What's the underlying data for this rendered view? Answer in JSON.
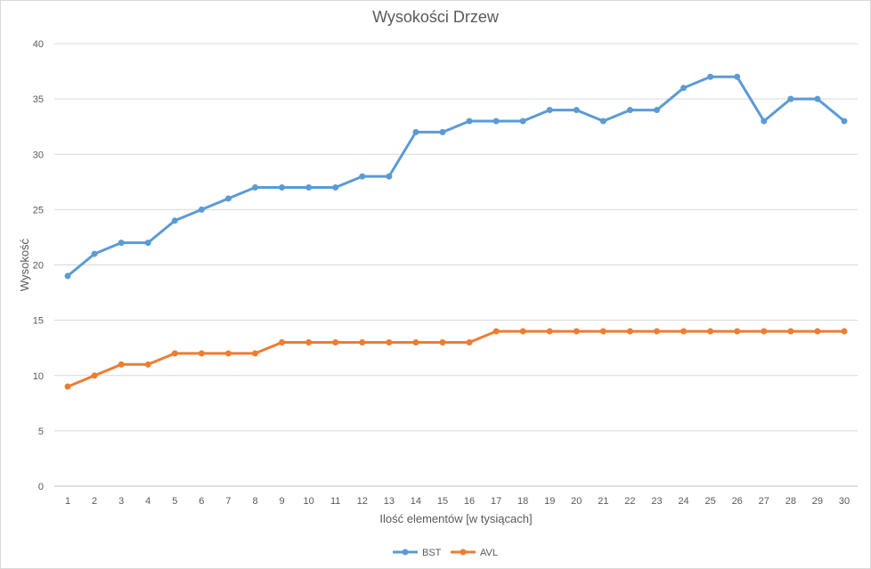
{
  "chart_data": {
    "type": "line",
    "title": "Wysokości Drzew",
    "xlabel": "Ilość elementów [w tysiącach]",
    "ylabel": "Wysokość",
    "ylim": [
      0,
      40
    ],
    "yticks": [
      0,
      5,
      10,
      15,
      20,
      25,
      30,
      35,
      40
    ],
    "grid": true,
    "legend_position": "bottom",
    "categories": [
      1,
      2,
      3,
      4,
      5,
      6,
      7,
      8,
      9,
      10,
      11,
      12,
      13,
      14,
      15,
      16,
      17,
      18,
      19,
      20,
      21,
      22,
      23,
      24,
      25,
      26,
      27,
      28,
      29,
      30
    ],
    "series": [
      {
        "name": "BST",
        "color": "#5b9bd5",
        "values": [
          19,
          21,
          22,
          22,
          24,
          25,
          26,
          27,
          27,
          27,
          27,
          28,
          28,
          32,
          32,
          33,
          33,
          33,
          34,
          34,
          33,
          34,
          34,
          36,
          37,
          37,
          33,
          35,
          35,
          33
        ]
      },
      {
        "name": "AVL",
        "color": "#ed7d31",
        "values": [
          9,
          10,
          11,
          11,
          12,
          12,
          12,
          12,
          13,
          13,
          13,
          13,
          13,
          13,
          13,
          13,
          14,
          14,
          14,
          14,
          14,
          14,
          14,
          14,
          14,
          14,
          14,
          14,
          14,
          14
        ]
      }
    ]
  }
}
